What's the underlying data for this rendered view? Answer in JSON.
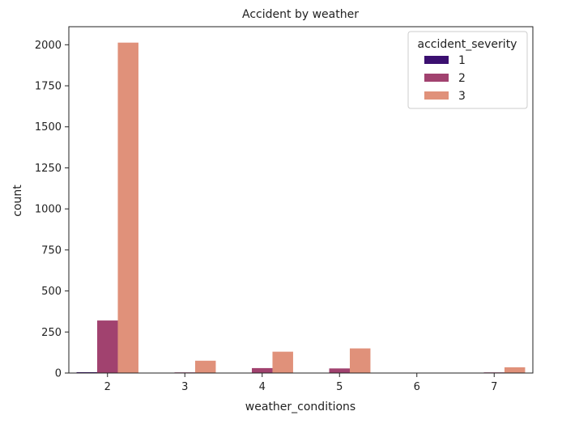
{
  "chart_data": {
    "type": "bar",
    "title": "Accident by weather",
    "xlabel": "weather_conditions",
    "ylabel": "count",
    "categories": [
      "2",
      "3",
      "4",
      "5",
      "6",
      "7"
    ],
    "yticks": [
      0,
      250,
      500,
      750,
      1000,
      1250,
      1500,
      1750,
      2000
    ],
    "ylim": [
      0,
      2110
    ],
    "legend": {
      "title": "accident_severity",
      "placement": "top-right"
    },
    "series": [
      {
        "name": "1",
        "color": "#3b0f70",
        "values": [
          5,
          0,
          0,
          0,
          0,
          0
        ]
      },
      {
        "name": "2",
        "color": "#a1426f",
        "values": [
          320,
          4,
          30,
          28,
          0,
          4
        ]
      },
      {
        "name": "3",
        "color": "#e0917a",
        "values": [
          2013,
          75,
          130,
          150,
          0,
          35
        ]
      }
    ]
  }
}
